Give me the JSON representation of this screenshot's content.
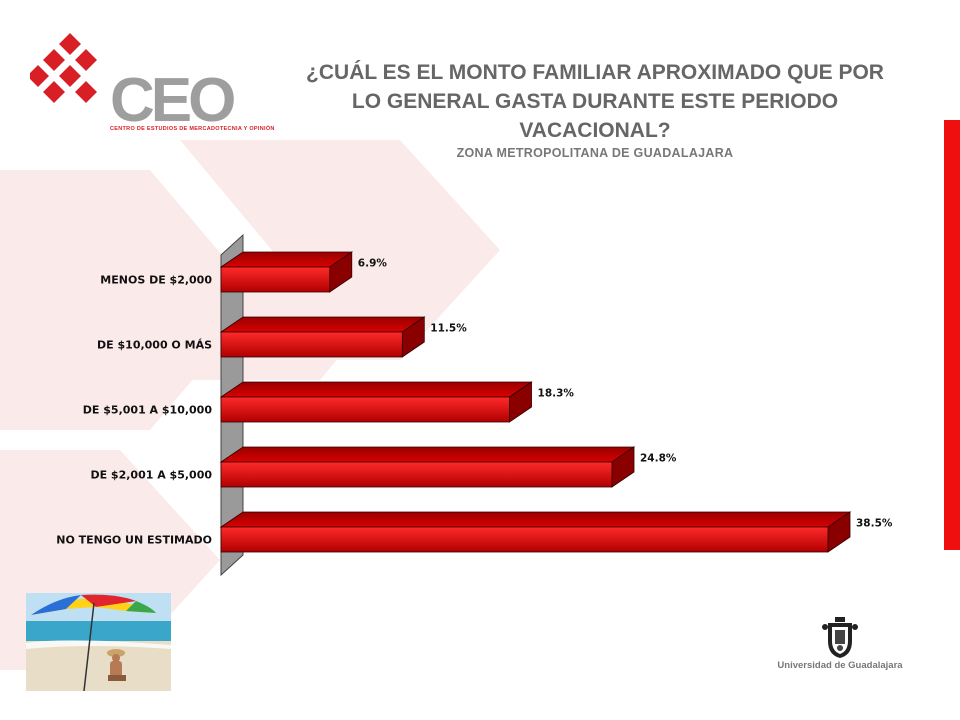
{
  "header": {
    "logo": {
      "text": "CEO",
      "tagline": "CENTRO DE ESTUDIOS DE MERCADOTECNIA Y OPINIÓN",
      "icon": "diamond-lattice-icon",
      "color": "#d81f26"
    },
    "title": "¿CUÁL ES EL MONTO FAMILIAR APROXIMADO QUE POR LO GENERAL GASTA DURANTE ESTE PERIODO VACACIONAL?",
    "subtitle": "ZONA METROPOLITANA DE GUADALAJARA"
  },
  "chart_data": {
    "type": "bar",
    "orientation": "horizontal",
    "style": "3d",
    "categories": [
      "MENOS DE $2,000",
      "DE $10,000 O MÁS",
      "DE $5,001  A $10,000",
      "DE $2,001  A $5,000",
      "NO TENGO UN ESTIMADO"
    ],
    "values": [
      6.9,
      11.5,
      18.3,
      24.8,
      38.5
    ],
    "data_labels": [
      "6.9%",
      "11.5%",
      "18.3%",
      "24.8%",
      "38.5%"
    ],
    "unit": "%",
    "bar_color": "#e00000",
    "xlim": [
      0,
      40
    ],
    "grid": false,
    "legend": "none"
  },
  "footer": {
    "photo": "beach-umbrella-photo",
    "university": "Universidad de Guadalajara",
    "university_icon": "university-crest-icon"
  },
  "accent_color": "#f00f0f"
}
